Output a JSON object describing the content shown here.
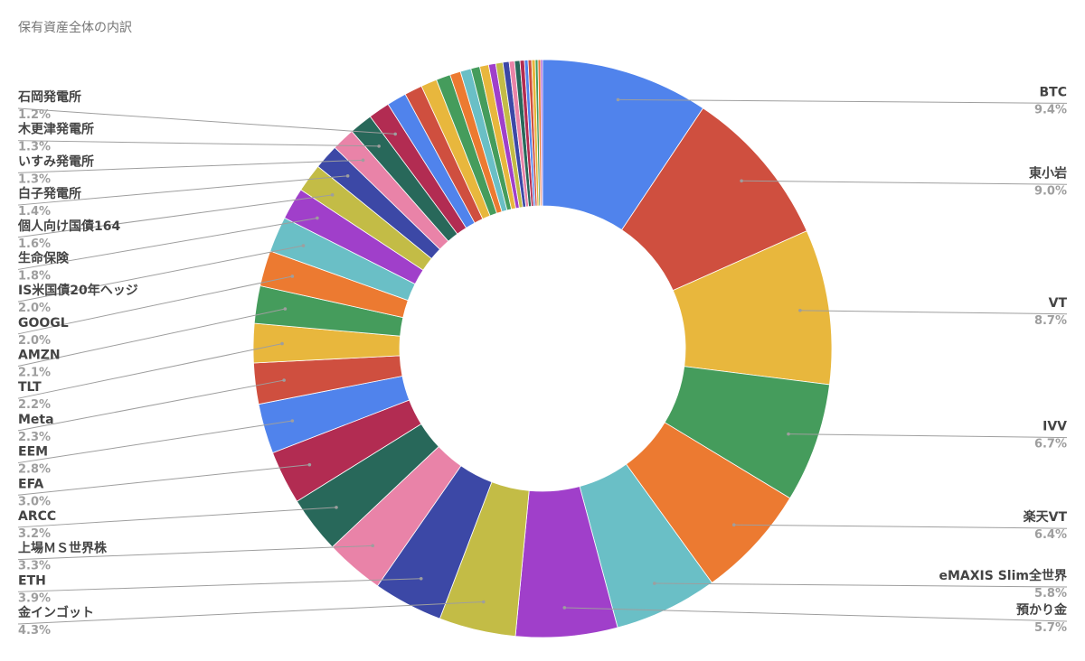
{
  "chart_data": {
    "type": "pie",
    "donut": true,
    "title": "保有資産全体の内訳",
    "labeled": [
      {
        "name": "BTC",
        "pct": "9.4%",
        "value": 9.4,
        "color": "#5083ec",
        "side": "right"
      },
      {
        "name": "東小岩",
        "pct": "9.0%",
        "value": 9.0,
        "color": "#cf4f3f",
        "side": "right"
      },
      {
        "name": "VT",
        "pct": "8.7%",
        "value": 8.7,
        "color": "#e8b73d",
        "side": "right"
      },
      {
        "name": "IVV",
        "pct": "6.7%",
        "value": 6.7,
        "color": "#459c5c",
        "side": "right"
      },
      {
        "name": "楽天VT",
        "pct": "6.4%",
        "value": 6.4,
        "color": "#ec7a31",
        "side": "right"
      },
      {
        "name": "eMAXIS Slim全世界",
        "pct": "5.8%",
        "value": 5.8,
        "color": "#6abfc6",
        "side": "right"
      },
      {
        "name": "預かり金",
        "pct": "5.7%",
        "value": 5.7,
        "color": "#a03fca",
        "side": "right"
      },
      {
        "name": "金インゴット",
        "pct": "4.3%",
        "value": 4.3,
        "color": "#c3bc46",
        "side": "left"
      },
      {
        "name": "ETH",
        "pct": "3.9%",
        "value": 3.9,
        "color": "#3c48a6",
        "side": "left"
      },
      {
        "name": "上場ＭＳ世界株",
        "pct": "3.3%",
        "value": 3.3,
        "color": "#e983a8",
        "side": "left"
      },
      {
        "name": "ARCC",
        "pct": "3.2%",
        "value": 3.2,
        "color": "#28685a",
        "side": "left"
      },
      {
        "name": "EFA",
        "pct": "3.0%",
        "value": 3.0,
        "color": "#b22c52",
        "side": "left"
      },
      {
        "name": "EEM",
        "pct": "2.8%",
        "value": 2.8,
        "color": "#5083ec",
        "side": "left"
      },
      {
        "name": "Meta",
        "pct": "2.3%",
        "value": 2.3,
        "color": "#cf4f3f",
        "side": "left"
      },
      {
        "name": "TLT",
        "pct": "2.2%",
        "value": 2.2,
        "color": "#e8b73d",
        "side": "left"
      },
      {
        "name": "AMZN",
        "pct": "2.1%",
        "value": 2.1,
        "color": "#459c5c",
        "side": "left"
      },
      {
        "name": "GOOGL",
        "pct": "2.0%",
        "value": 2.0,
        "color": "#ec7a31",
        "side": "left"
      },
      {
        "name": "IS米国債20年ヘッジ",
        "pct": "2.0%",
        "value": 2.0,
        "color": "#6abfc6",
        "side": "left"
      },
      {
        "name": "生命保険",
        "pct": "1.8%",
        "value": 1.8,
        "color": "#a03fca",
        "side": "left"
      },
      {
        "name": "個人向け国債164",
        "pct": "1.6%",
        "value": 1.6,
        "color": "#c3bc46",
        "side": "left"
      },
      {
        "name": "白子発電所",
        "pct": "1.4%",
        "value": 1.4,
        "color": "#3c48a6",
        "side": "left"
      },
      {
        "name": "いすみ発電所",
        "pct": "1.3%",
        "value": 1.3,
        "color": "#e983a8",
        "side": "left"
      },
      {
        "name": "木更津発電所",
        "pct": "1.3%",
        "value": 1.3,
        "color": "#28685a",
        "side": "left"
      },
      {
        "name": "石岡発電所",
        "pct": "1.2%",
        "value": 1.2,
        "color": "#b22c52",
        "side": "left"
      }
    ],
    "unlabeled": [
      {
        "value": 1.1,
        "color": "#5083ec"
      },
      {
        "value": 1.0,
        "color": "#cf4f3f"
      },
      {
        "value": 0.9,
        "color": "#e8b73d"
      },
      {
        "value": 0.8,
        "color": "#459c5c"
      },
      {
        "value": 0.6,
        "color": "#ec7a31"
      },
      {
        "value": 0.6,
        "color": "#6abfc6"
      },
      {
        "value": 0.5,
        "color": "#459c5c"
      },
      {
        "value": 0.5,
        "color": "#e8b73d"
      },
      {
        "value": 0.4,
        "color": "#a03fca"
      },
      {
        "value": 0.4,
        "color": "#c3bc46"
      },
      {
        "value": 0.35,
        "color": "#3c48a6"
      },
      {
        "value": 0.3,
        "color": "#e983a8"
      },
      {
        "value": 0.3,
        "color": "#28685a"
      },
      {
        "value": 0.25,
        "color": "#b22c52"
      },
      {
        "value": 0.2,
        "color": "#5083ec"
      },
      {
        "value": 0.2,
        "color": "#cf4f3f"
      },
      {
        "value": 0.2,
        "color": "#e8b73d"
      },
      {
        "value": 0.15,
        "color": "#459c5c"
      },
      {
        "value": 0.15,
        "color": "#ec7a31"
      },
      {
        "value": 0.1,
        "color": "#a03fca"
      }
    ]
  }
}
